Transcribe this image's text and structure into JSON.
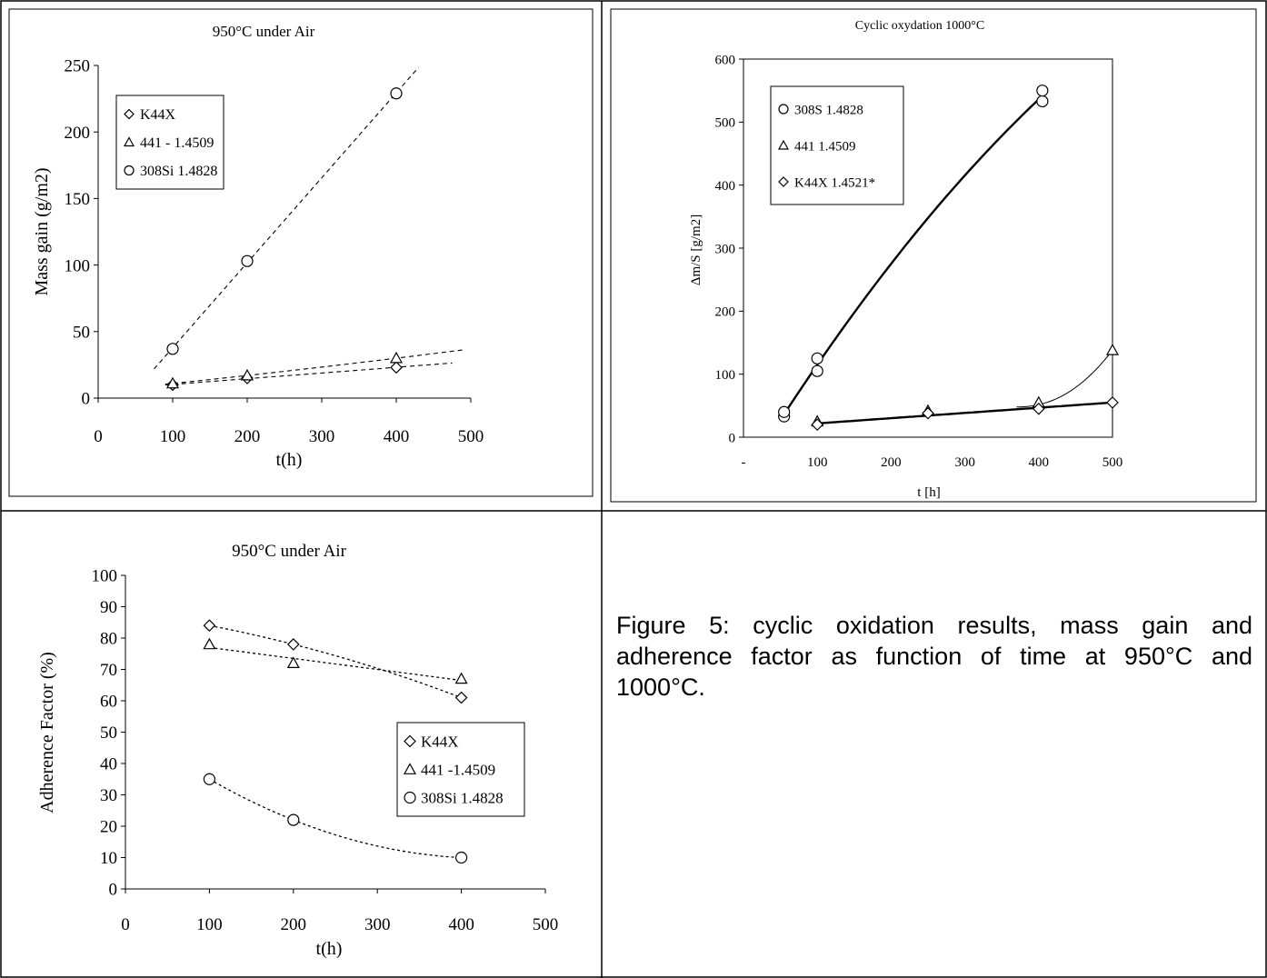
{
  "caption": "Figure 5: cyclic oxidation results, mass gain and adherence factor as function of time at 950°C and 1000°C.",
  "chart_data": [
    {
      "type": "scatter",
      "title": "950°C under Air",
      "xlabel": "t(h)",
      "ylabel": "Mass gain (g/m2)",
      "xlim": [
        0,
        500
      ],
      "ylim": [
        0,
        250
      ],
      "x_ticks": [
        0,
        100,
        200,
        300,
        400,
        500
      ],
      "y_ticks": [
        0,
        50,
        100,
        150,
        200,
        250
      ],
      "grid": false,
      "legend_position": "top-left",
      "series": [
        {
          "name": "K44X",
          "marker": "diamond",
          "x": [
            100,
            200,
            400
          ],
          "y": [
            10,
            15,
            23
          ],
          "trendline": "dashed"
        },
        {
          "name": "441 - 1.4509",
          "marker": "triangle",
          "x": [
            100,
            200,
            400
          ],
          "y": [
            11,
            17,
            30
          ],
          "trendline": "dashed"
        },
        {
          "name": "308Si 1.4828",
          "marker": "circle",
          "x": [
            100,
            200,
            400
          ],
          "y": [
            37,
            103,
            229
          ],
          "trendline": "dashed"
        }
      ]
    },
    {
      "type": "scatter",
      "title": "Cyclic oxydation 1000°C",
      "xlabel": "t [h]",
      "ylabel": "Δm/S [g/m2]",
      "xlim": [
        0,
        500
      ],
      "ylim": [
        0,
        600
      ],
      "x_ticks": [
        "-",
        "100",
        "200",
        "300",
        "400",
        "500"
      ],
      "y_ticks": [
        0,
        100,
        200,
        300,
        400,
        500,
        600
      ],
      "grid": false,
      "legend_position": "top-left",
      "series": [
        {
          "name": "308S 1.4828",
          "marker": "circle",
          "x": [
            55,
            55,
            100,
            100,
            405,
            405
          ],
          "y": [
            33,
            40,
            105,
            125,
            533,
            550
          ],
          "trendline": "solid"
        },
        {
          "name": "441 1.4509",
          "marker": "triangle",
          "x": [
            100,
            250,
            400,
            500
          ],
          "y": [
            25,
            42,
            55,
            138
          ],
          "trendline": "solid"
        },
        {
          "name": "K44X 1.4521*",
          "marker": "diamond",
          "x": [
            100,
            250,
            400,
            500
          ],
          "y": [
            20,
            38,
            45,
            55
          ],
          "trendline": "solid"
        }
      ]
    },
    {
      "type": "scatter",
      "title": "950°C under Air",
      "xlabel": "t(h)",
      "ylabel": "Adherence Factor (%)",
      "xlim": [
        0,
        500
      ],
      "ylim": [
        0,
        100
      ],
      "x_ticks": [
        0,
        100,
        200,
        300,
        400,
        500
      ],
      "y_ticks": [
        0,
        10,
        20,
        30,
        40,
        50,
        60,
        70,
        80,
        90,
        100
      ],
      "grid": false,
      "legend_position": "right",
      "series": [
        {
          "name": "K44X",
          "marker": "diamond",
          "x": [
            100,
            200,
            400
          ],
          "y": [
            84,
            78,
            61
          ],
          "trendline": "dotted"
        },
        {
          "name": "441 -1.4509",
          "marker": "triangle",
          "x": [
            100,
            200,
            400
          ],
          "y": [
            78,
            72,
            67
          ],
          "trendline": "dotted"
        },
        {
          "name": "308Si 1.4828",
          "marker": "circle",
          "x": [
            100,
            200,
            400
          ],
          "y": [
            35,
            22,
            10
          ],
          "trendline": "dotted"
        }
      ]
    }
  ]
}
